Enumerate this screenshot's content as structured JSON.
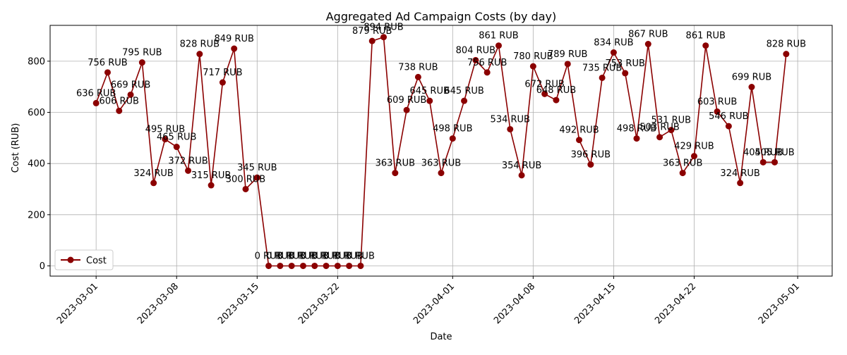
{
  "chart_data": {
    "type": "line",
    "title": "Aggregated Ad Campaign Costs (by day)",
    "xlabel": "Date",
    "ylabel": "Cost (RUB)",
    "x_range": [
      "2023-02-25",
      "2023-05-04"
    ],
    "ylim": [
      -40,
      940
    ],
    "x_ticks": [
      "2023-03-01",
      "2023-03-08",
      "2023-03-15",
      "2023-03-22",
      "2023-04-01",
      "2023-04-08",
      "2023-04-15",
      "2023-04-22",
      "2023-05-01"
    ],
    "y_ticks": [
      0,
      200,
      400,
      600,
      800
    ],
    "grid": true,
    "legend_position": "lower-left",
    "line_color": "#8b0000",
    "label_suffix": " RUB",
    "series": [
      {
        "name": "Cost",
        "points": [
          {
            "x": "2023-03-01",
            "y": 636
          },
          {
            "x": "2023-03-02",
            "y": 756
          },
          {
            "x": "2023-03-03",
            "y": 606
          },
          {
            "x": "2023-03-04",
            "y": 669
          },
          {
            "x": "2023-03-05",
            "y": 795
          },
          {
            "x": "2023-03-06",
            "y": 324
          },
          {
            "x": "2023-03-07",
            "y": 495
          },
          {
            "x": "2023-03-08",
            "y": 465
          },
          {
            "x": "2023-03-09",
            "y": 372
          },
          {
            "x": "2023-03-10",
            "y": 828
          },
          {
            "x": "2023-03-11",
            "y": 315
          },
          {
            "x": "2023-03-12",
            "y": 717
          },
          {
            "x": "2023-03-13",
            "y": 849
          },
          {
            "x": "2023-03-14",
            "y": 300
          },
          {
            "x": "2023-03-15",
            "y": 345
          },
          {
            "x": "2023-03-16",
            "y": 0
          },
          {
            "x": "2023-03-17",
            "y": 0
          },
          {
            "x": "2023-03-18",
            "y": 0
          },
          {
            "x": "2023-03-19",
            "y": 0
          },
          {
            "x": "2023-03-20",
            "y": 0
          },
          {
            "x": "2023-03-21",
            "y": 0
          },
          {
            "x": "2023-03-22",
            "y": 0
          },
          {
            "x": "2023-03-23",
            "y": 0
          },
          {
            "x": "2023-03-24",
            "y": 0
          },
          {
            "x": "2023-03-25",
            "y": 879
          },
          {
            "x": "2023-03-26",
            "y": 894
          },
          {
            "x": "2023-03-27",
            "y": 363
          },
          {
            "x": "2023-03-28",
            "y": 609
          },
          {
            "x": "2023-03-29",
            "y": 738
          },
          {
            "x": "2023-03-30",
            "y": 645
          },
          {
            "x": "2023-03-31",
            "y": 363
          },
          {
            "x": "2023-04-01",
            "y": 498
          },
          {
            "x": "2023-04-02",
            "y": 645
          },
          {
            "x": "2023-04-03",
            "y": 804
          },
          {
            "x": "2023-04-04",
            "y": 756
          },
          {
            "x": "2023-04-05",
            "y": 861
          },
          {
            "x": "2023-04-06",
            "y": 534
          },
          {
            "x": "2023-04-07",
            "y": 354
          },
          {
            "x": "2023-04-08",
            "y": 780
          },
          {
            "x": "2023-04-09",
            "y": 672
          },
          {
            "x": "2023-04-10",
            "y": 648
          },
          {
            "x": "2023-04-11",
            "y": 789
          },
          {
            "x": "2023-04-12",
            "y": 492
          },
          {
            "x": "2023-04-13",
            "y": 396
          },
          {
            "x": "2023-04-14",
            "y": 735
          },
          {
            "x": "2023-04-15",
            "y": 834
          },
          {
            "x": "2023-04-16",
            "y": 753
          },
          {
            "x": "2023-04-17",
            "y": 498
          },
          {
            "x": "2023-04-18",
            "y": 867
          },
          {
            "x": "2023-04-19",
            "y": 503
          },
          {
            "x": "2023-04-20",
            "y": 531
          },
          {
            "x": "2023-04-21",
            "y": 363
          },
          {
            "x": "2023-04-22",
            "y": 429
          },
          {
            "x": "2023-04-23",
            "y": 861
          },
          {
            "x": "2023-04-24",
            "y": 603
          },
          {
            "x": "2023-04-25",
            "y": 546
          },
          {
            "x": "2023-04-26",
            "y": 324
          },
          {
            "x": "2023-04-27",
            "y": 699
          },
          {
            "x": "2023-04-28",
            "y": 405
          },
          {
            "x": "2023-04-29",
            "y": 405
          },
          {
            "x": "2023-04-30",
            "y": 828
          }
        ]
      }
    ]
  }
}
